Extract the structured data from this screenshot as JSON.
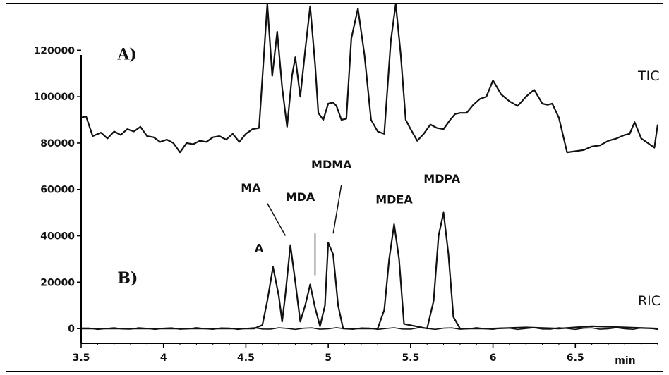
{
  "chart_data": {
    "type": "line",
    "xlim": [
      3.5,
      7.0
    ],
    "ylim": [
      -3000,
      135000
    ],
    "x_ticks": [
      {
        "value": 3.5,
        "label": "3.5"
      },
      {
        "value": 4,
        "label": "4"
      },
      {
        "value": 4.5,
        "label": "4.5"
      },
      {
        "value": 5,
        "label": "5"
      },
      {
        "value": 5.5,
        "label": "5.5"
      },
      {
        "value": 6,
        "label": "6"
      },
      {
        "value": 6.5,
        "label": "6.5"
      }
    ],
    "x_unit": "min",
    "y_ticks": [
      {
        "value": 0,
        "label": "0"
      },
      {
        "value": 20000,
        "label": "20000"
      },
      {
        "value": 40000,
        "label": "40000"
      },
      {
        "value": 60000,
        "label": "60000"
      },
      {
        "value": 80000,
        "label": "80000"
      },
      {
        "value": 100000,
        "label": "100000"
      },
      {
        "value": 120000,
        "label": "120000"
      }
    ],
    "grid": false,
    "panel_labels": [
      {
        "text": "A)",
        "x": 3.72,
        "y": 116000
      },
      {
        "text": "B)",
        "x": 3.72,
        "y": 19500
      }
    ],
    "series": [
      {
        "name": "TIC",
        "label_at": {
          "x": 6.88,
          "y": 107000
        },
        "x": [
          3.5,
          3.53,
          3.57,
          3.62,
          3.66,
          3.7,
          3.74,
          3.78,
          3.82,
          3.86,
          3.9,
          3.94,
          3.98,
          4.02,
          4.06,
          4.1,
          4.14,
          4.18,
          4.22,
          4.26,
          4.3,
          4.34,
          4.38,
          4.42,
          4.46,
          4.5,
          4.54,
          4.58,
          4.6,
          4.63,
          4.66,
          4.69,
          4.72,
          4.75,
          4.78,
          4.8,
          4.83,
          4.86,
          4.89,
          4.92,
          4.94,
          4.97,
          5.0,
          5.03,
          5.05,
          5.08,
          5.11,
          5.14,
          5.18,
          5.22,
          5.26,
          5.3,
          5.34,
          5.38,
          5.41,
          5.44,
          5.47,
          5.5,
          5.54,
          5.58,
          5.62,
          5.66,
          5.7,
          5.74,
          5.77,
          5.8,
          5.84,
          5.88,
          5.92,
          5.96,
          6.0,
          6.05,
          6.1,
          6.15,
          6.2,
          6.25,
          6.3,
          6.33,
          6.36,
          6.4,
          6.45,
          6.5,
          6.55,
          6.6,
          6.65,
          6.7,
          6.75,
          6.8,
          6.83,
          6.86,
          6.9,
          6.94,
          6.98,
          7.0
        ],
        "y": [
          91000,
          91500,
          83000,
          84500,
          82000,
          85000,
          83500,
          86000,
          85000,
          87000,
          83000,
          82500,
          80500,
          81500,
          80000,
          76000,
          80000,
          79500,
          81000,
          80500,
          82500,
          83000,
          81500,
          84000,
          80500,
          84000,
          86000,
          86500,
          108000,
          140000,
          109000,
          128000,
          104000,
          87000,
          109000,
          117000,
          100000,
          120000,
          139000,
          114000,
          93000,
          90000,
          97000,
          97500,
          96000,
          90000,
          90500,
          125000,
          138000,
          118000,
          90000,
          85000,
          84000,
          124000,
          140000,
          118000,
          90000,
          86000,
          81000,
          84000,
          88000,
          86500,
          86000,
          90000,
          92500,
          93000,
          93000,
          96500,
          99000,
          100000,
          107000,
          101000,
          98000,
          96000,
          100000,
          103000,
          97000,
          96500,
          97000,
          91000,
          76000,
          76500,
          77000,
          78500,
          79000,
          81000,
          82000,
          83500,
          84000,
          89000,
          82000,
          80000,
          78000,
          88000
        ]
      },
      {
        "name": "RIC",
        "label_at": {
          "x": 6.88,
          "y": 10000
        },
        "x": [
          3.5,
          4.55,
          4.6,
          4.63,
          4.665,
          4.7,
          4.72,
          4.74,
          4.77,
          4.8,
          4.83,
          4.86,
          4.89,
          4.92,
          4.95,
          4.98,
          5.0,
          5.03,
          5.06,
          5.09,
          5.3,
          5.34,
          5.37,
          5.4,
          5.43,
          5.46,
          5.6,
          5.64,
          5.67,
          5.7,
          5.73,
          5.76,
          5.8,
          6.0,
          6.2,
          6.4,
          6.6,
          6.8,
          7.0
        ],
        "y": [
          0,
          0,
          1500,
          12000,
          26500,
          14000,
          3000,
          15000,
          36000,
          20000,
          3000,
          10000,
          19000,
          9000,
          1000,
          10000,
          37000,
          32000,
          10000,
          0,
          0,
          8000,
          30000,
          45000,
          30000,
          2000,
          0,
          12000,
          40000,
          50000,
          32000,
          5000,
          0,
          0,
          500,
          0,
          1000,
          500,
          0
        ]
      }
    ],
    "annotations": [
      {
        "text": "A",
        "at": {
          "x": 4.58,
          "y": 33000
        }
      },
      {
        "text": "MA",
        "at": {
          "x": 4.53,
          "y": 59000
        },
        "line_from": {
          "x": 4.63,
          "y": 54000
        },
        "line_to": {
          "x": 4.74,
          "y": 40000
        }
      },
      {
        "text": "MDA",
        "at": {
          "x": 4.83,
          "y": 55000
        },
        "line_from": {
          "x": 4.92,
          "y": 41000
        },
        "line_to": {
          "x": 4.92,
          "y": 23000
        }
      },
      {
        "text": "MDMA",
        "at": {
          "x": 5.02,
          "y": 69000
        },
        "line_from": {
          "x": 5.08,
          "y": 62000
        },
        "line_to": {
          "x": 5.03,
          "y": 41000
        }
      },
      {
        "text": "MDEA",
        "at": {
          "x": 5.4,
          "y": 54000
        }
      },
      {
        "text": "MDPA",
        "at": {
          "x": 5.69,
          "y": 63000
        }
      }
    ],
    "colors": {
      "line": "#111111",
      "axis": "#000000",
      "background": "#ffffff"
    }
  }
}
